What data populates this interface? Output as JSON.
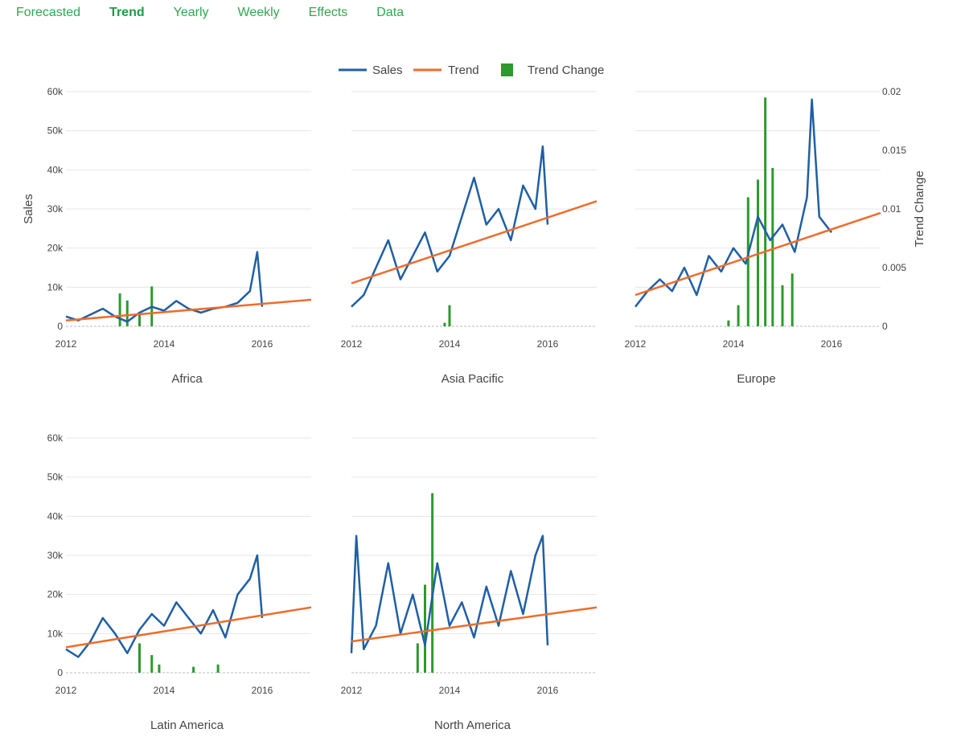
{
  "tabs": [
    "Forecasted",
    "Trend",
    "Yearly",
    "Weekly",
    "Effects",
    "Data"
  ],
  "active_tab": 1,
  "colors": {
    "sales": "#1f5fa4",
    "trend": "#ee6c2b",
    "trend_change": "#2c9a2c",
    "grid": "#e6e6e6",
    "tab": "#2ea84f"
  },
  "chart_data": {
    "type": "line",
    "legend": {
      "placement": "top-center",
      "entries": [
        "Sales",
        "Trend",
        "Trend Change"
      ]
    },
    "y_left": {
      "label": "Sales",
      "range": [
        0,
        60000
      ],
      "ticks": [
        0,
        10000,
        20000,
        30000,
        40000,
        50000,
        60000
      ],
      "tick_labels": [
        "0",
        "10k",
        "20k",
        "30k",
        "40k",
        "50k",
        "60k"
      ]
    },
    "y_right": {
      "label": "Trend Change",
      "range": [
        0,
        0.02
      ],
      "ticks": [
        0,
        0.005,
        0.01,
        0.015,
        0.02
      ],
      "tick_labels": [
        "0",
        "0.005",
        "0.01",
        "0.015",
        "0.02"
      ]
    },
    "x": {
      "range": [
        2012,
        2017
      ],
      "ticks": [
        2012,
        2014,
        2016
      ],
      "tick_labels": [
        "2012",
        "2014",
        "2016"
      ]
    },
    "panels": [
      {
        "name": "Africa",
        "sales": [
          [
            2012.0,
            2500
          ],
          [
            2012.25,
            1500
          ],
          [
            2012.5,
            3000
          ],
          [
            2012.75,
            4500
          ],
          [
            2013.0,
            2500
          ],
          [
            2013.25,
            1200
          ],
          [
            2013.5,
            3500
          ],
          [
            2013.75,
            5000
          ],
          [
            2014.0,
            4000
          ],
          [
            2014.25,
            6500
          ],
          [
            2014.5,
            4500
          ],
          [
            2014.75,
            3500
          ],
          [
            2015.0,
            4500
          ],
          [
            2015.25,
            5000
          ],
          [
            2015.5,
            6000
          ],
          [
            2015.75,
            9000
          ],
          [
            2015.9,
            19000
          ],
          [
            2016.0,
            5000
          ]
        ],
        "trend": [
          [
            2012.0,
            1500
          ],
          [
            2017.0,
            6800
          ]
        ],
        "trend_change": [
          [
            2013.1,
            0.0028
          ],
          [
            2013.25,
            0.0022
          ],
          [
            2013.5,
            0.0012
          ],
          [
            2013.75,
            0.0034
          ]
        ]
      },
      {
        "name": "Asia Pacific",
        "sales": [
          [
            2012.0,
            5000
          ],
          [
            2012.25,
            8000
          ],
          [
            2012.5,
            15000
          ],
          [
            2012.75,
            22000
          ],
          [
            2013.0,
            12000
          ],
          [
            2013.25,
            18000
          ],
          [
            2013.5,
            24000
          ],
          [
            2013.75,
            14000
          ],
          [
            2014.0,
            18000
          ],
          [
            2014.25,
            28000
          ],
          [
            2014.5,
            38000
          ],
          [
            2014.75,
            26000
          ],
          [
            2015.0,
            30000
          ],
          [
            2015.25,
            22000
          ],
          [
            2015.5,
            36000
          ],
          [
            2015.75,
            30000
          ],
          [
            2015.9,
            46000
          ],
          [
            2016.0,
            26000
          ]
        ],
        "trend": [
          [
            2012.0,
            11000
          ],
          [
            2017.0,
            32000
          ]
        ],
        "trend_change": [
          [
            2013.9,
            0.0003
          ],
          [
            2014.0,
            0.0018
          ]
        ]
      },
      {
        "name": "Europe",
        "sales": [
          [
            2012.0,
            5000
          ],
          [
            2012.25,
            9000
          ],
          [
            2012.5,
            12000
          ],
          [
            2012.75,
            9000
          ],
          [
            2013.0,
            15000
          ],
          [
            2013.25,
            8000
          ],
          [
            2013.5,
            18000
          ],
          [
            2013.75,
            14000
          ],
          [
            2014.0,
            20000
          ],
          [
            2014.25,
            16000
          ],
          [
            2014.5,
            28000
          ],
          [
            2014.75,
            22000
          ],
          [
            2015.0,
            26000
          ],
          [
            2015.25,
            19000
          ],
          [
            2015.5,
            33000
          ],
          [
            2015.6,
            58000
          ],
          [
            2015.75,
            28000
          ],
          [
            2016.0,
            24000
          ]
        ],
        "trend": [
          [
            2012.0,
            8000
          ],
          [
            2017.0,
            29000
          ]
        ],
        "trend_change": [
          [
            2013.9,
            0.0005
          ],
          [
            2014.1,
            0.0018
          ],
          [
            2014.3,
            0.011
          ],
          [
            2014.5,
            0.0125
          ],
          [
            2014.65,
            0.0195
          ],
          [
            2014.8,
            0.0135
          ],
          [
            2015.0,
            0.0035
          ],
          [
            2015.2,
            0.0045
          ]
        ]
      },
      {
        "name": "Latin America",
        "sales": [
          [
            2012.0,
            6000
          ],
          [
            2012.25,
            4000
          ],
          [
            2012.5,
            8000
          ],
          [
            2012.75,
            14000
          ],
          [
            2013.0,
            10000
          ],
          [
            2013.25,
            5000
          ],
          [
            2013.5,
            11000
          ],
          [
            2013.75,
            15000
          ],
          [
            2014.0,
            12000
          ],
          [
            2014.25,
            18000
          ],
          [
            2014.5,
            14000
          ],
          [
            2014.75,
            10000
          ],
          [
            2015.0,
            16000
          ],
          [
            2015.25,
            9000
          ],
          [
            2015.5,
            20000
          ],
          [
            2015.75,
            24000
          ],
          [
            2015.9,
            30000
          ],
          [
            2016.0,
            14000
          ]
        ],
        "trend": [
          [
            2012.0,
            6500
          ],
          [
            2017.0,
            16700
          ]
        ],
        "trend_change": [
          [
            2013.5,
            0.0025
          ],
          [
            2013.75,
            0.0015
          ],
          [
            2013.9,
            0.0007
          ],
          [
            2014.6,
            0.0005
          ],
          [
            2015.1,
            0.0007
          ]
        ]
      },
      {
        "name": "North America",
        "sales": [
          [
            2012.0,
            5000
          ],
          [
            2012.1,
            35000
          ],
          [
            2012.25,
            6000
          ],
          [
            2012.5,
            12000
          ],
          [
            2012.75,
            28000
          ],
          [
            2013.0,
            10000
          ],
          [
            2013.25,
            20000
          ],
          [
            2013.5,
            7000
          ],
          [
            2013.75,
            28000
          ],
          [
            2014.0,
            12000
          ],
          [
            2014.25,
            18000
          ],
          [
            2014.5,
            9000
          ],
          [
            2014.75,
            22000
          ],
          [
            2015.0,
            12000
          ],
          [
            2015.25,
            26000
          ],
          [
            2015.5,
            15000
          ],
          [
            2015.75,
            30000
          ],
          [
            2015.9,
            35000
          ],
          [
            2016.0,
            7000
          ]
        ],
        "trend": [
          [
            2012.0,
            8000
          ],
          [
            2017.0,
            16700
          ]
        ],
        "trend_change": [
          [
            2013.35,
            0.0025
          ],
          [
            2013.5,
            0.0075
          ],
          [
            2013.65,
            0.0153
          ]
        ]
      }
    ]
  }
}
